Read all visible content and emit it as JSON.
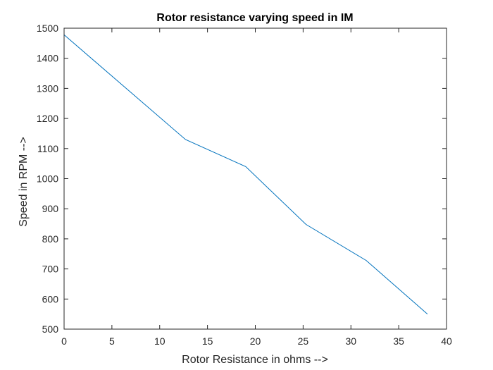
{
  "chart_data": {
    "type": "line",
    "title": "Rotor resistance varying speed in IM",
    "xlabel": "Rotor Resistance in ohms -->",
    "ylabel": "Speed in RPM -->",
    "xlim": [
      0,
      40
    ],
    "ylim": [
      500,
      1500
    ],
    "xticks": [
      0,
      5,
      10,
      15,
      20,
      25,
      30,
      35,
      40
    ],
    "yticks": [
      500,
      600,
      700,
      800,
      900,
      1000,
      1100,
      1200,
      1300,
      1400,
      1500
    ],
    "grid": false,
    "box": true,
    "series": [
      {
        "color": "#0072bd",
        "x": [
          0,
          12.7,
          19,
          25.3,
          31.6,
          38
        ],
        "y": [
          1478,
          1130,
          1040,
          848,
          728,
          550
        ]
      }
    ]
  }
}
